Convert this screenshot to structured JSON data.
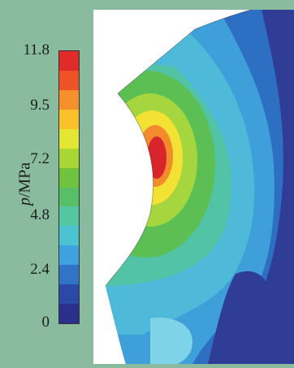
{
  "legend": {
    "unit_symbol": "p",
    "unit_text": "/MPa",
    "ticks": [
      "11.8",
      "9.5",
      "7.2",
      "4.8",
      "2.4",
      "0"
    ],
    "tick_values": [
      11.8,
      9.5,
      7.2,
      4.8,
      2.4,
      0
    ],
    "colors": [
      "#2d2f8c",
      "#2b49a6",
      "#2f74c6",
      "#3fa2de",
      "#4cc3d3",
      "#54c6a2",
      "#58bf66",
      "#6fc33e",
      "#a9d535",
      "#e4e634",
      "#f9c12a",
      "#f6902a",
      "#ee5227",
      "#e12a2a"
    ]
  },
  "contour_colors": {
    "max": "#d8252b",
    "high": "#f38a2b",
    "yellow": "#f3e233",
    "lime": "#a5d63e",
    "green": "#5cbf53",
    "teal": "#53c3a6",
    "cyan": "#4fb9da",
    "light_blue": "#3f9fd8",
    "blue": "#2d6fc2",
    "dark_blue": "#2f3d96"
  }
}
